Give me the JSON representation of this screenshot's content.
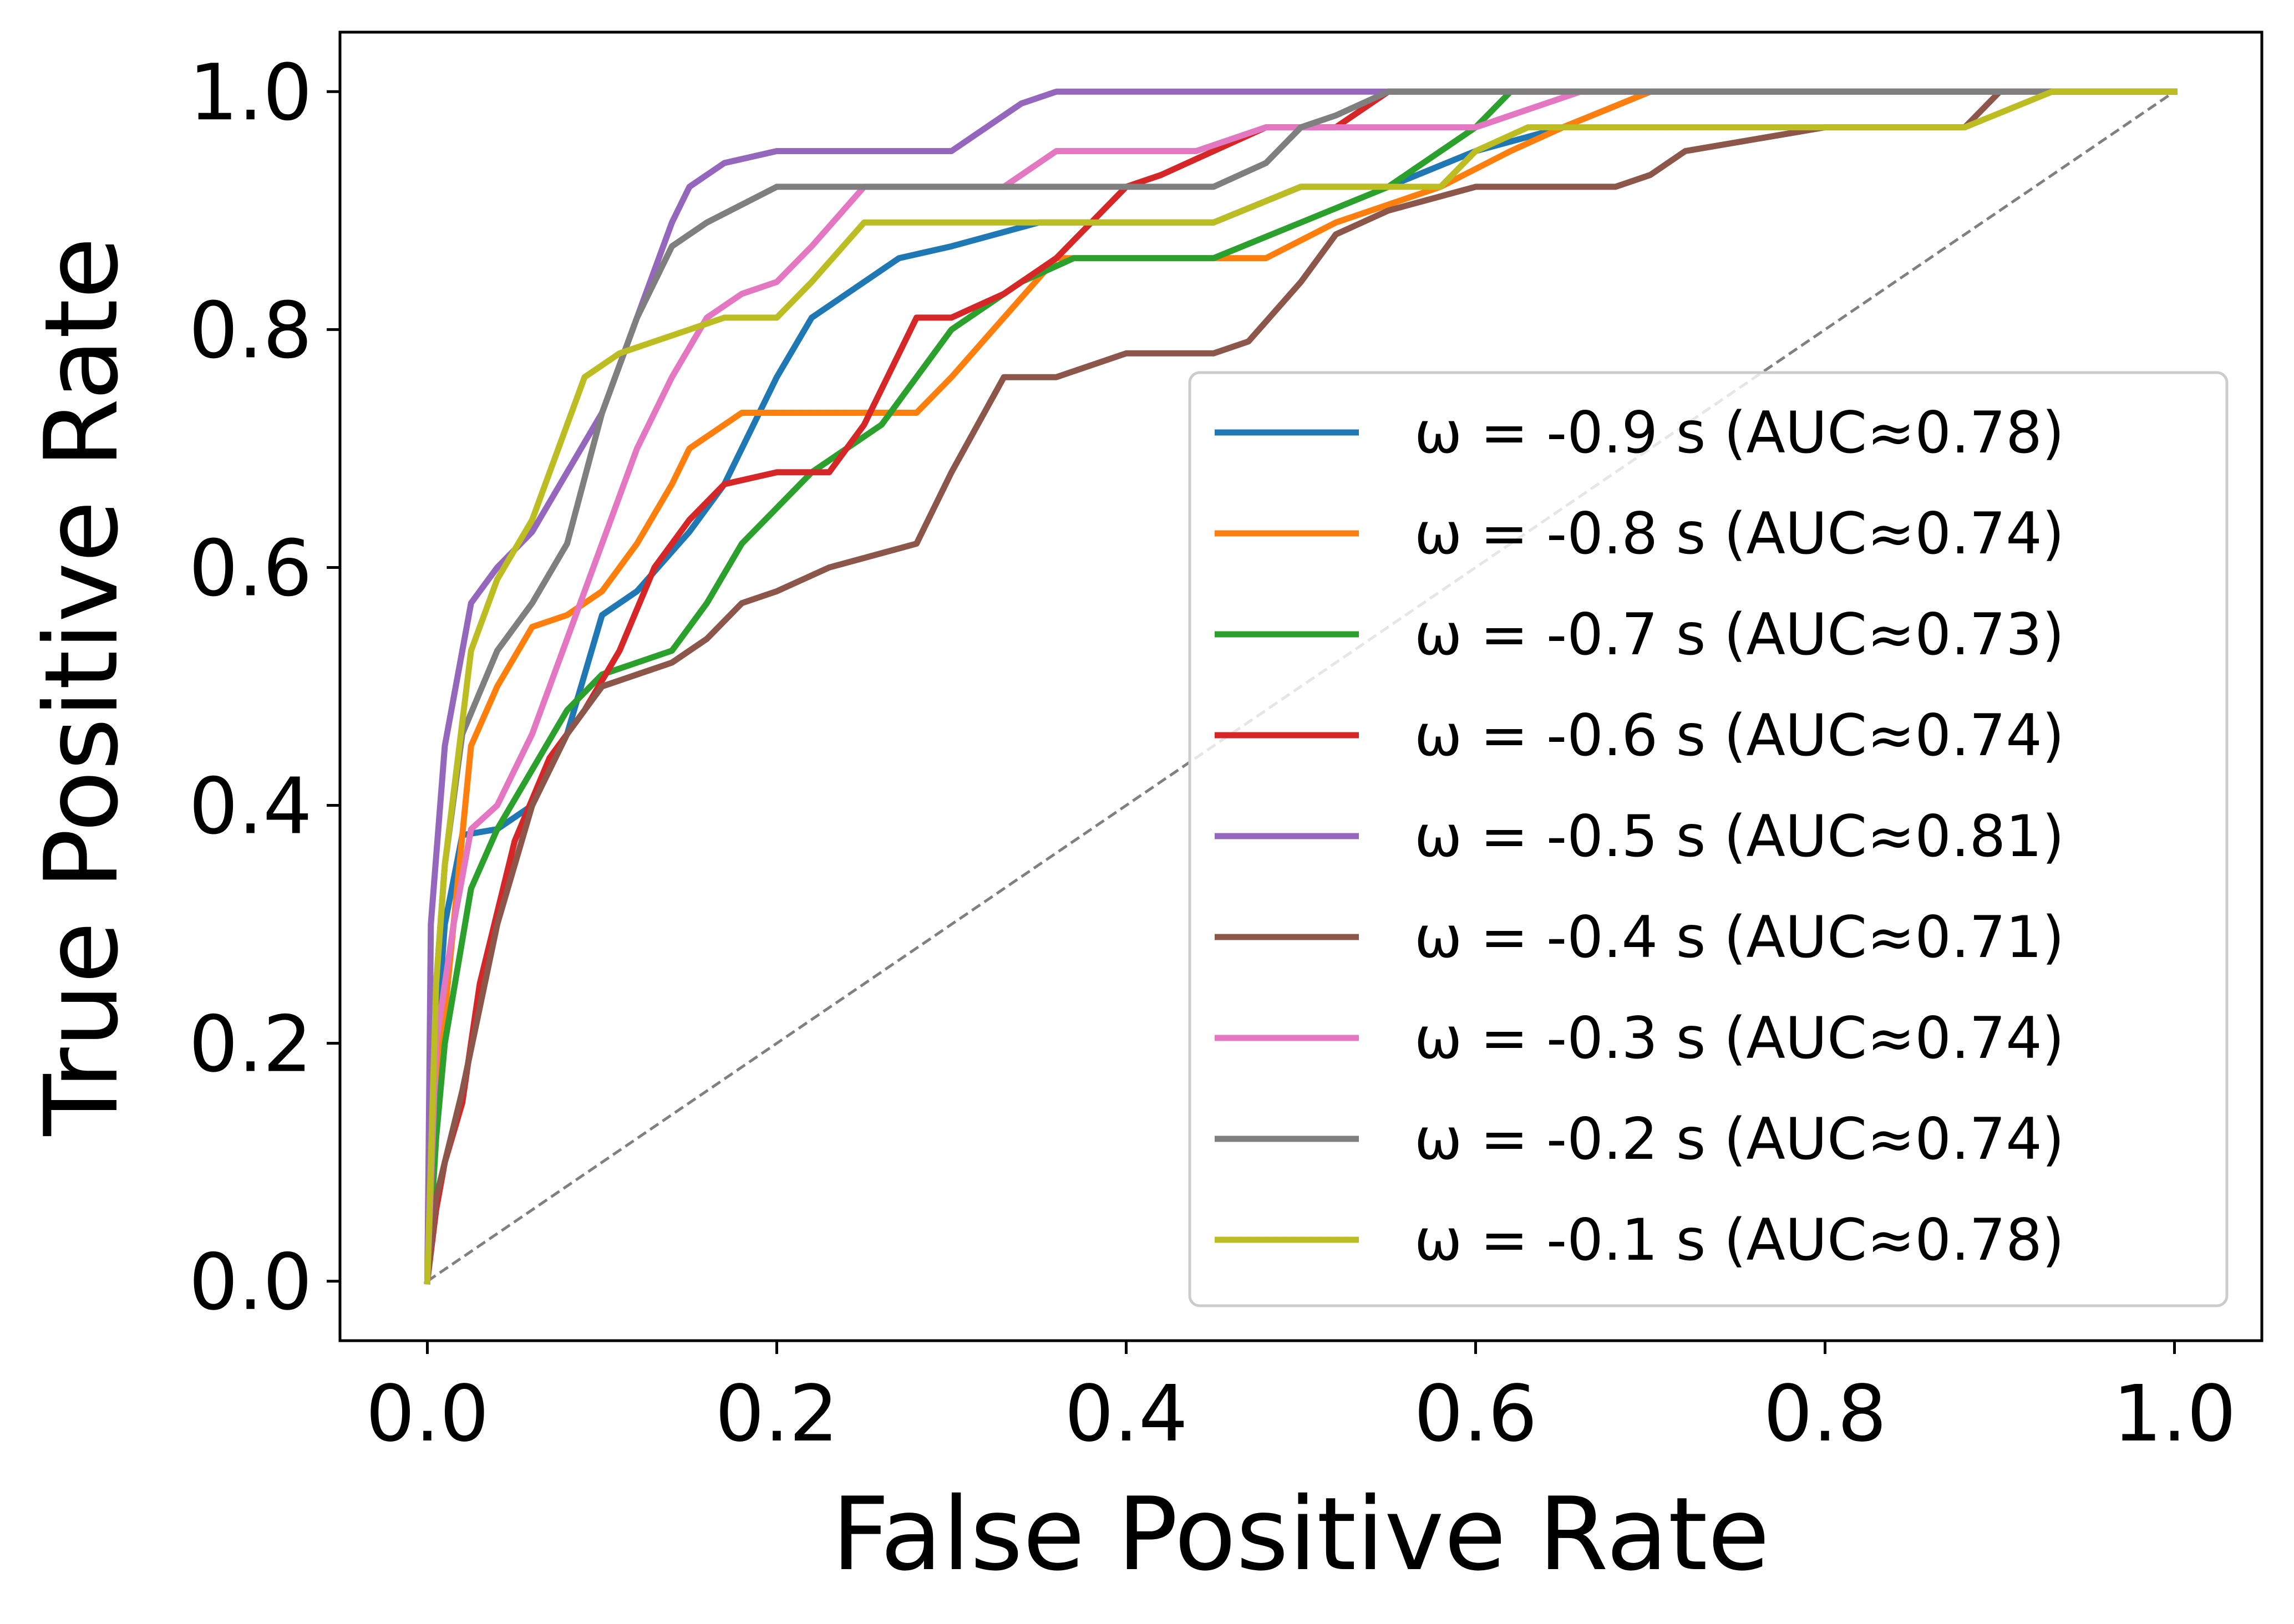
{
  "chart_data": {
    "type": "line",
    "title": "",
    "xlabel": "False Positive Rate",
    "ylabel": "True Positive Rate",
    "xlim": [
      -0.05,
      1.05
    ],
    "ylim": [
      -0.05,
      1.05
    ],
    "xticks": [
      "0.0",
      "0.2",
      "0.4",
      "0.6",
      "0.8",
      "1.0"
    ],
    "yticks": [
      "0.0",
      "0.2",
      "0.4",
      "0.6",
      "0.8",
      "1.0"
    ],
    "xtick_values": [
      0,
      0.2,
      0.4,
      0.6,
      0.8,
      1.0
    ],
    "ytick_values": [
      0,
      0.2,
      0.4,
      0.6,
      0.8,
      1.0
    ],
    "grid": false,
    "legend_position": "lower-right",
    "diagonal": {
      "style": "dashed",
      "color": "#808080",
      "x": [
        0,
        1
      ],
      "y": [
        0,
        1
      ]
    },
    "series": [
      {
        "name": "ω = -0.9 s (AUC≈0.78)",
        "color": "#1f77b4",
        "x": [
          0,
          0.005,
          0.01,
          0.02,
          0.04,
          0.06,
          0.08,
          0.1,
          0.12,
          0.15,
          0.17,
          0.2,
          0.22,
          0.24,
          0.27,
          0.3,
          0.35,
          0.4,
          0.45,
          0.5,
          0.55,
          0.6,
          0.65,
          0.7,
          1.0
        ],
        "y": [
          0,
          0.2,
          0.3,
          0.375,
          0.38,
          0.4,
          0.46,
          0.56,
          0.58,
          0.63,
          0.67,
          0.76,
          0.81,
          0.83,
          0.86,
          0.87,
          0.89,
          0.89,
          0.89,
          0.92,
          0.92,
          0.95,
          0.97,
          1.0,
          1.0
        ]
      },
      {
        "name": "ω = -0.8 s (AUC≈0.74)",
        "color": "#ff7f0e",
        "x": [
          0,
          0.005,
          0.015,
          0.025,
          0.04,
          0.06,
          0.08,
          0.1,
          0.12,
          0.14,
          0.15,
          0.17,
          0.18,
          0.2,
          0.25,
          0.28,
          0.3,
          0.33,
          0.36,
          0.4,
          0.48,
          0.52,
          0.58,
          0.62,
          0.65,
          0.7,
          1.0
        ],
        "y": [
          0,
          0.15,
          0.3,
          0.45,
          0.5,
          0.55,
          0.56,
          0.58,
          0.62,
          0.67,
          0.7,
          0.72,
          0.73,
          0.73,
          0.73,
          0.73,
          0.76,
          0.81,
          0.86,
          0.86,
          0.86,
          0.89,
          0.92,
          0.95,
          0.97,
          1.0,
          1.0
        ]
      },
      {
        "name": "ω = -0.7 s (AUC≈0.73)",
        "color": "#2ca02c",
        "x": [
          0,
          0.005,
          0.01,
          0.025,
          0.04,
          0.06,
          0.08,
          0.1,
          0.12,
          0.14,
          0.16,
          0.18,
          0.2,
          0.22,
          0.26,
          0.3,
          0.34,
          0.37,
          0.4,
          0.45,
          0.5,
          0.55,
          0.6,
          0.62,
          1.0
        ],
        "y": [
          0,
          0.12,
          0.2,
          0.33,
          0.38,
          0.43,
          0.48,
          0.51,
          0.52,
          0.53,
          0.57,
          0.62,
          0.65,
          0.68,
          0.72,
          0.8,
          0.84,
          0.86,
          0.86,
          0.86,
          0.89,
          0.92,
          0.97,
          1.0,
          1.0
        ]
      },
      {
        "name": "ω = -0.6 s (AUC≈0.74)",
        "color": "#d62728",
        "x": [
          0,
          0.005,
          0.01,
          0.02,
          0.03,
          0.05,
          0.07,
          0.09,
          0.11,
          0.13,
          0.15,
          0.17,
          0.2,
          0.23,
          0.25,
          0.28,
          0.3,
          0.33,
          0.36,
          0.38,
          0.4,
          0.42,
          0.45,
          0.48,
          0.52,
          0.55,
          1.0
        ],
        "y": [
          0,
          0.06,
          0.1,
          0.15,
          0.25,
          0.37,
          0.44,
          0.48,
          0.53,
          0.6,
          0.64,
          0.67,
          0.68,
          0.68,
          0.72,
          0.81,
          0.81,
          0.83,
          0.86,
          0.89,
          0.92,
          0.93,
          0.95,
          0.97,
          0.97,
          1.0,
          1.0
        ]
      },
      {
        "name": "ω = -0.5 s (AUC≈0.81)",
        "color": "#9467bd",
        "x": [
          0,
          0.002,
          0.01,
          0.025,
          0.04,
          0.06,
          0.08,
          0.1,
          0.12,
          0.14,
          0.15,
          0.17,
          0.2,
          0.25,
          0.3,
          0.32,
          0.34,
          0.36,
          0.4,
          1.0
        ],
        "y": [
          0,
          0.3,
          0.45,
          0.57,
          0.6,
          0.63,
          0.68,
          0.73,
          0.81,
          0.89,
          0.92,
          0.94,
          0.95,
          0.95,
          0.95,
          0.97,
          0.99,
          1.0,
          1.0,
          1.0
        ]
      },
      {
        "name": "ω = -0.4 s (AUC≈0.71)",
        "color": "#8c564b",
        "x": [
          0,
          0.005,
          0.01,
          0.02,
          0.04,
          0.06,
          0.08,
          0.1,
          0.12,
          0.14,
          0.16,
          0.18,
          0.2,
          0.23,
          0.28,
          0.3,
          0.33,
          0.36,
          0.4,
          0.45,
          0.47,
          0.5,
          0.52,
          0.55,
          0.6,
          0.68,
          0.7,
          0.72,
          0.8,
          0.88,
          0.9,
          1.0
        ],
        "y": [
          0,
          0.07,
          0.1,
          0.16,
          0.3,
          0.4,
          0.46,
          0.5,
          0.51,
          0.52,
          0.54,
          0.57,
          0.58,
          0.6,
          0.62,
          0.68,
          0.76,
          0.76,
          0.78,
          0.78,
          0.79,
          0.84,
          0.88,
          0.9,
          0.92,
          0.92,
          0.93,
          0.95,
          0.97,
          0.97,
          1.0,
          1.0
        ]
      },
      {
        "name": "ω = -0.3 s (AUC≈0.74)",
        "color": "#e377c2",
        "x": [
          0,
          0.005,
          0.015,
          0.025,
          0.04,
          0.06,
          0.08,
          0.1,
          0.12,
          0.14,
          0.16,
          0.18,
          0.2,
          0.22,
          0.25,
          0.3,
          0.33,
          0.36,
          0.4,
          0.44,
          0.48,
          0.52,
          0.55,
          0.6,
          0.66,
          1.0
        ],
        "y": [
          0,
          0.2,
          0.3,
          0.38,
          0.4,
          0.46,
          0.54,
          0.62,
          0.7,
          0.76,
          0.81,
          0.83,
          0.84,
          0.87,
          0.92,
          0.92,
          0.92,
          0.95,
          0.95,
          0.95,
          0.97,
          0.97,
          0.97,
          0.97,
          1.0,
          1.0
        ]
      },
      {
        "name": "ω = -0.2 s (AUC≈0.74)",
        "color": "#7f7f7f",
        "x": [
          0,
          0.005,
          0.01,
          0.02,
          0.04,
          0.06,
          0.08,
          0.1,
          0.12,
          0.14,
          0.16,
          0.2,
          0.22,
          0.3,
          0.35,
          0.4,
          0.45,
          0.48,
          0.5,
          0.52,
          0.55,
          1.0
        ],
        "y": [
          0,
          0.25,
          0.35,
          0.46,
          0.53,
          0.57,
          0.62,
          0.73,
          0.81,
          0.87,
          0.89,
          0.92,
          0.92,
          0.92,
          0.92,
          0.92,
          0.92,
          0.94,
          0.97,
          0.98,
          1.0,
          1.0
        ]
      },
      {
        "name": "ω = -0.1 s (AUC≈0.78)",
        "color": "#bcbd22",
        "x": [
          0,
          0.005,
          0.01,
          0.025,
          0.04,
          0.06,
          0.08,
          0.09,
          0.11,
          0.13,
          0.15,
          0.17,
          0.2,
          0.22,
          0.25,
          0.3,
          0.35,
          0.45,
          0.5,
          0.58,
          0.6,
          0.63,
          0.65,
          0.88,
          0.93,
          1.0
        ],
        "y": [
          0,
          0.25,
          0.35,
          0.53,
          0.59,
          0.64,
          0.72,
          0.76,
          0.78,
          0.79,
          0.8,
          0.81,
          0.81,
          0.84,
          0.89,
          0.89,
          0.89,
          0.89,
          0.92,
          0.92,
          0.95,
          0.97,
          0.97,
          0.97,
          1.0,
          1.0
        ]
      }
    ]
  }
}
